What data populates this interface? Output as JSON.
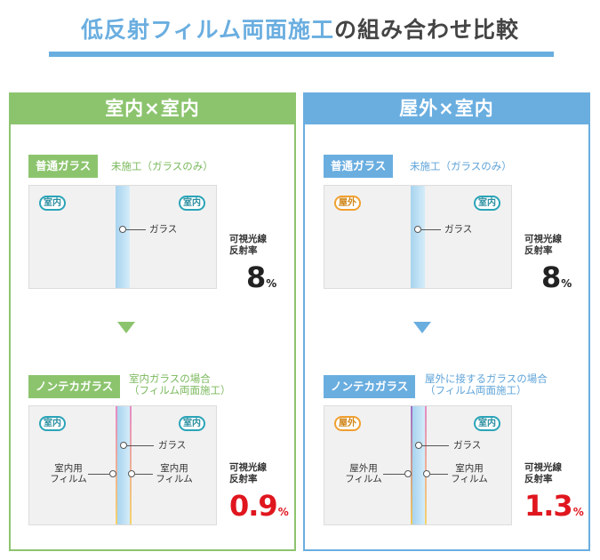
{
  "title": {
    "part1": "低反射フィルム両面施工",
    "part2": "の組み合わせ比較"
  },
  "colors": {
    "green": "#8cc46e",
    "blue": "#6aaee0",
    "red": "#e0161f"
  },
  "panels": [
    {
      "header": "室内×室内",
      "top": {
        "tag": "普通ガラス",
        "caption": "未施工（ガラスのみ）",
        "left_badge": "室内",
        "right_badge": "室内",
        "glass_label": "ガラス",
        "reflect_label_1": "可視光線",
        "reflect_label_2": "反射率",
        "value": "8",
        "unit": "%"
      },
      "bottom": {
        "tag": "ノンテカガラス",
        "caption_1": "室内ガラスの場合",
        "caption_2": "（フィルム両面施工）",
        "left_badge": "室内",
        "right_badge": "室内",
        "glass_label": "ガラス",
        "left_film_1": "室内用",
        "left_film_2": "フィルム",
        "right_film_1": "室内用",
        "right_film_2": "フィルム",
        "reflect_label_1": "可視光線",
        "reflect_label_2": "反射率",
        "value": "0.9",
        "unit": "%"
      }
    },
    {
      "header": "屋外×室内",
      "top": {
        "tag": "普通ガラス",
        "caption": "未施工（ガラスのみ）",
        "left_badge": "屋外",
        "right_badge": "室内",
        "glass_label": "ガラス",
        "reflect_label_1": "可視光線",
        "reflect_label_2": "反射率",
        "value": "8",
        "unit": "%"
      },
      "bottom": {
        "tag": "ノンテカガラス",
        "caption_1": "屋外に接するガラスの場合",
        "caption_2": "（フィルム両面施工）",
        "left_badge": "屋外",
        "right_badge": "室内",
        "glass_label": "ガラス",
        "left_film_1": "屋外用",
        "left_film_2": "フィルム",
        "right_film_1": "室内用",
        "right_film_2": "フィルム",
        "reflect_label_1": "可視光線",
        "reflect_label_2": "反射率",
        "value": "1.3",
        "unit": "%"
      }
    }
  ]
}
